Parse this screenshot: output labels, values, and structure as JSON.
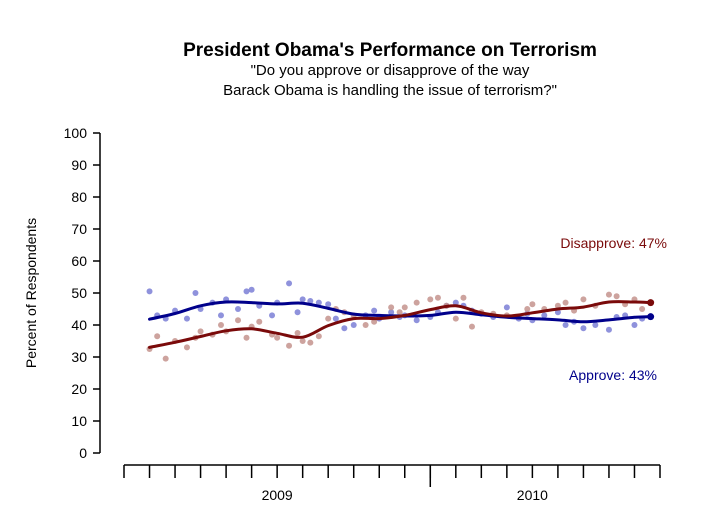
{
  "chart_data": {
    "type": "line",
    "title": "President Obama's Performance on Terrorism",
    "subtitle_lines": [
      "\"Do you approve or disapprove of the way",
      "Barack Obama is handling the issue of terrorism?\""
    ],
    "ylabel": "Percent of Respondents",
    "xlabel": "",
    "ylim": [
      0,
      100
    ],
    "yticks": [
      0,
      10,
      20,
      30,
      40,
      50,
      60,
      70,
      80,
      90,
      100
    ],
    "x_range": [
      "2009-01",
      "2010-10"
    ],
    "x_year_labels": [
      {
        "label": "2009",
        "center": "2009-07"
      },
      {
        "label": "2010",
        "center": "2010-05"
      }
    ],
    "x_year_divider": "2010-01",
    "grid": false,
    "series": [
      {
        "name": "Approve",
        "end_label": "Approve: 43%",
        "color": "#00008b",
        "point_color": "#7b7fd6",
        "trend": [
          {
            "x": "2009-02",
            "y": 41.8
          },
          {
            "x": "2009-03",
            "y": 43.6
          },
          {
            "x": "2009-04",
            "y": 46.0
          },
          {
            "x": "2009-05",
            "y": 47.2
          },
          {
            "x": "2009-06",
            "y": 47.0
          },
          {
            "x": "2009-07",
            "y": 46.6
          },
          {
            "x": "2009-08",
            "y": 46.8
          },
          {
            "x": "2009-09",
            "y": 45.2
          },
          {
            "x": "2009-10",
            "y": 43.4
          },
          {
            "x": "2009-11",
            "y": 43.0
          },
          {
            "x": "2009-12",
            "y": 42.8
          },
          {
            "x": "2010-01",
            "y": 43.0
          },
          {
            "x": "2010-02",
            "y": 44.0
          },
          {
            "x": "2010-03",
            "y": 43.2
          },
          {
            "x": "2010-04",
            "y": 42.4
          },
          {
            "x": "2010-05",
            "y": 42.0
          },
          {
            "x": "2010-06",
            "y": 41.6
          },
          {
            "x": "2010-07",
            "y": 41.0
          },
          {
            "x": "2010-08",
            "y": 41.6
          },
          {
            "x": "2010-09",
            "y": 42.4
          },
          {
            "x": "2010-09-20",
            "y": 42.6
          }
        ],
        "points": [
          {
            "x": "2009-02",
            "y": 50.5
          },
          {
            "x": "2009-02-10",
            "y": 43
          },
          {
            "x": "2009-02-20",
            "y": 42
          },
          {
            "x": "2009-03",
            "y": 44.5
          },
          {
            "x": "2009-03-15",
            "y": 42
          },
          {
            "x": "2009-03-25",
            "y": 50
          },
          {
            "x": "2009-04",
            "y": 45
          },
          {
            "x": "2009-04-15",
            "y": 47
          },
          {
            "x": "2009-04-25",
            "y": 43
          },
          {
            "x": "2009-05",
            "y": 48
          },
          {
            "x": "2009-05-15",
            "y": 45
          },
          {
            "x": "2009-05-25",
            "y": 50.5
          },
          {
            "x": "2009-06",
            "y": 51
          },
          {
            "x": "2009-06-10",
            "y": 46
          },
          {
            "x": "2009-06-25",
            "y": 43
          },
          {
            "x": "2009-07",
            "y": 47
          },
          {
            "x": "2009-07-15",
            "y": 53
          },
          {
            "x": "2009-07-25",
            "y": 44
          },
          {
            "x": "2009-08",
            "y": 48
          },
          {
            "x": "2009-08-10",
            "y": 47.5
          },
          {
            "x": "2009-08-20",
            "y": 47
          },
          {
            "x": "2009-09",
            "y": 46.5
          },
          {
            "x": "2009-09-10",
            "y": 42
          },
          {
            "x": "2009-09-20",
            "y": 39
          },
          {
            "x": "2009-10",
            "y": 40
          },
          {
            "x": "2009-10-15",
            "y": 43
          },
          {
            "x": "2009-10-25",
            "y": 44.5
          },
          {
            "x": "2009-11",
            "y": 42
          },
          {
            "x": "2009-11-15",
            "y": 44
          },
          {
            "x": "2009-11-25",
            "y": 42.5
          },
          {
            "x": "2009-12",
            "y": 43
          },
          {
            "x": "2009-12-15",
            "y": 41.5
          },
          {
            "x": "2010-01",
            "y": 42.5
          },
          {
            "x": "2010-01-10",
            "y": 44
          },
          {
            "x": "2010-01-20",
            "y": 46
          },
          {
            "x": "2010-02",
            "y": 47
          },
          {
            "x": "2010-02-10",
            "y": 46
          },
          {
            "x": "2010-02-20",
            "y": 44.5
          },
          {
            "x": "2010-03",
            "y": 43.5
          },
          {
            "x": "2010-03-15",
            "y": 42.5
          },
          {
            "x": "2010-04",
            "y": 45.5
          },
          {
            "x": "2010-04-15",
            "y": 42
          },
          {
            "x": "2010-04-25",
            "y": 43.5
          },
          {
            "x": "2010-05",
            "y": 41.5
          },
          {
            "x": "2010-05-15",
            "y": 43
          },
          {
            "x": "2010-06",
            "y": 44
          },
          {
            "x": "2010-06-10",
            "y": 40
          },
          {
            "x": "2010-06-20",
            "y": 41
          },
          {
            "x": "2010-07",
            "y": 39
          },
          {
            "x": "2010-07-15",
            "y": 40
          },
          {
            "x": "2010-08",
            "y": 38.5
          },
          {
            "x": "2010-08-10",
            "y": 42.5
          },
          {
            "x": "2010-08-20",
            "y": 43
          },
          {
            "x": "2010-09",
            "y": 40
          },
          {
            "x": "2010-09-10",
            "y": 42
          }
        ]
      },
      {
        "name": "Disapprove",
        "end_label": "Disapprove: 47%",
        "color": "#7a0a0a",
        "point_color": "#c4938d",
        "trend": [
          {
            "x": "2009-02",
            "y": 33.0
          },
          {
            "x": "2009-03",
            "y": 34.6
          },
          {
            "x": "2009-04",
            "y": 36.4
          },
          {
            "x": "2009-05",
            "y": 38.2
          },
          {
            "x": "2009-06",
            "y": 38.8
          },
          {
            "x": "2009-07",
            "y": 37.4
          },
          {
            "x": "2009-08",
            "y": 36.2
          },
          {
            "x": "2009-09",
            "y": 39.8
          },
          {
            "x": "2009-10",
            "y": 42.0
          },
          {
            "x": "2009-11",
            "y": 42.0
          },
          {
            "x": "2009-12",
            "y": 43.0
          },
          {
            "x": "2010-01",
            "y": 44.8
          },
          {
            "x": "2010-02",
            "y": 46.0
          },
          {
            "x": "2010-03",
            "y": 43.8
          },
          {
            "x": "2010-04",
            "y": 42.8
          },
          {
            "x": "2010-05",
            "y": 43.8
          },
          {
            "x": "2010-06",
            "y": 45.0
          },
          {
            "x": "2010-07",
            "y": 45.6
          },
          {
            "x": "2010-08",
            "y": 47.2
          },
          {
            "x": "2010-09",
            "y": 47.2
          },
          {
            "x": "2010-09-20",
            "y": 47.0
          }
        ],
        "points": [
          {
            "x": "2009-02",
            "y": 32.5
          },
          {
            "x": "2009-02-10",
            "y": 36.5
          },
          {
            "x": "2009-02-20",
            "y": 29.5
          },
          {
            "x": "2009-03",
            "y": 35
          },
          {
            "x": "2009-03-15",
            "y": 33
          },
          {
            "x": "2009-03-25",
            "y": 36
          },
          {
            "x": "2009-04",
            "y": 38
          },
          {
            "x": "2009-04-15",
            "y": 37
          },
          {
            "x": "2009-04-25",
            "y": 40
          },
          {
            "x": "2009-05",
            "y": 38
          },
          {
            "x": "2009-05-15",
            "y": 41.5
          },
          {
            "x": "2009-05-25",
            "y": 36
          },
          {
            "x": "2009-06",
            "y": 39.5
          },
          {
            "x": "2009-06-10",
            "y": 41
          },
          {
            "x": "2009-06-25",
            "y": 37
          },
          {
            "x": "2009-07",
            "y": 36
          },
          {
            "x": "2009-07-15",
            "y": 33.5
          },
          {
            "x": "2009-07-25",
            "y": 37.5
          },
          {
            "x": "2009-08",
            "y": 35
          },
          {
            "x": "2009-08-10",
            "y": 34.5
          },
          {
            "x": "2009-08-20",
            "y": 36.5
          },
          {
            "x": "2009-09",
            "y": 42
          },
          {
            "x": "2009-09-10",
            "y": 45
          },
          {
            "x": "2009-09-20",
            "y": 44
          },
          {
            "x": "2009-10",
            "y": 43
          },
          {
            "x": "2009-10-15",
            "y": 40
          },
          {
            "x": "2009-10-25",
            "y": 41
          },
          {
            "x": "2009-11",
            "y": 42.5
          },
          {
            "x": "2009-11-15",
            "y": 45.5
          },
          {
            "x": "2009-11-25",
            "y": 44
          },
          {
            "x": "2009-12",
            "y": 45.5
          },
          {
            "x": "2009-12-15",
            "y": 47
          },
          {
            "x": "2010-01",
            "y": 48
          },
          {
            "x": "2010-01-10",
            "y": 48.5
          },
          {
            "x": "2010-01-20",
            "y": 46
          },
          {
            "x": "2010-02",
            "y": 42
          },
          {
            "x": "2010-02-10",
            "y": 48.5
          },
          {
            "x": "2010-02-20",
            "y": 39.5
          },
          {
            "x": "2010-03",
            "y": 44
          },
          {
            "x": "2010-03-15",
            "y": 43.5
          },
          {
            "x": "2010-04",
            "y": 43
          },
          {
            "x": "2010-04-15",
            "y": 42.5
          },
          {
            "x": "2010-04-25",
            "y": 45
          },
          {
            "x": "2010-05",
            "y": 46.5
          },
          {
            "x": "2010-05-15",
            "y": 45
          },
          {
            "x": "2010-06",
            "y": 46
          },
          {
            "x": "2010-06-10",
            "y": 47
          },
          {
            "x": "2010-06-20",
            "y": 44.5
          },
          {
            "x": "2010-07",
            "y": 48
          },
          {
            "x": "2010-07-15",
            "y": 46
          },
          {
            "x": "2010-08",
            "y": 49.5
          },
          {
            "x": "2010-08-10",
            "y": 49
          },
          {
            "x": "2010-08-20",
            "y": 46.5
          },
          {
            "x": "2010-09",
            "y": 48
          },
          {
            "x": "2010-09-10",
            "y": 45
          }
        ]
      }
    ]
  }
}
